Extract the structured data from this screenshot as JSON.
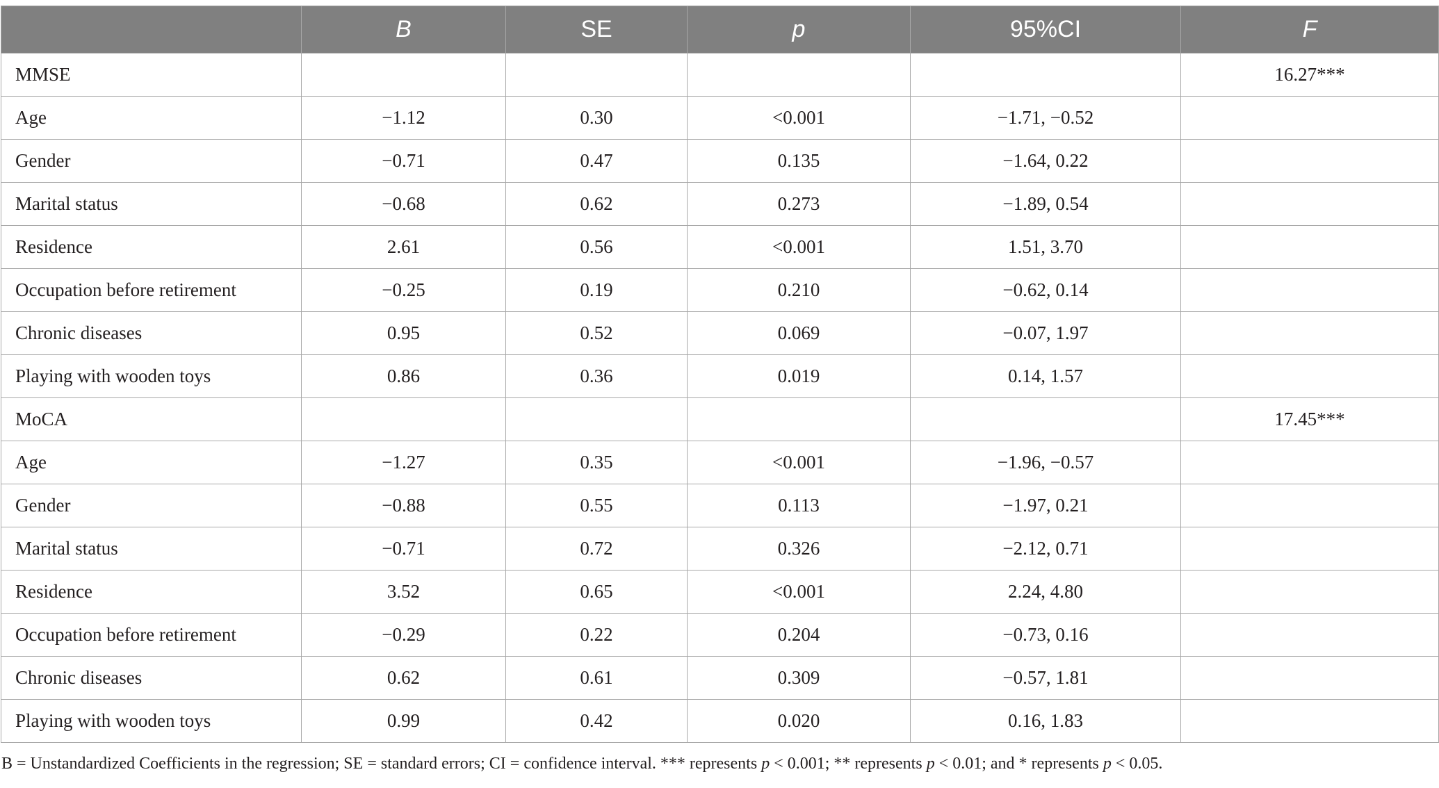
{
  "table": {
    "headers": [
      "",
      "B",
      "SE",
      "p",
      "95%CI",
      "F"
    ],
    "rows": [
      [
        "MMSE",
        "",
        "",
        "",
        "",
        "16.27***"
      ],
      [
        "Age",
        "−1.12",
        "0.30",
        "<0.001",
        "−1.71, −0.52",
        ""
      ],
      [
        "Gender",
        "−0.71",
        "0.47",
        "0.135",
        "−1.64, 0.22",
        ""
      ],
      [
        "Marital status",
        "−0.68",
        "0.62",
        "0.273",
        "−1.89, 0.54",
        ""
      ],
      [
        "Residence",
        "2.61",
        "0.56",
        "<0.001",
        "1.51, 3.70",
        ""
      ],
      [
        "Occupation before retirement",
        "−0.25",
        "0.19",
        "0.210",
        "−0.62, 0.14",
        ""
      ],
      [
        "Chronic diseases",
        "0.95",
        "0.52",
        "0.069",
        "−0.07, 1.97",
        ""
      ],
      [
        "Playing with wooden toys",
        "0.86",
        "0.36",
        "0.019",
        "0.14, 1.57",
        ""
      ],
      [
        "MoCA",
        "",
        "",
        "",
        "",
        "17.45***"
      ],
      [
        "Age",
        "−1.27",
        "0.35",
        "<0.001",
        "−1.96, −0.57",
        ""
      ],
      [
        "Gender",
        "−0.88",
        "0.55",
        "0.113",
        "−1.97, 0.21",
        ""
      ],
      [
        "Marital status",
        "−0.71",
        "0.72",
        "0.326",
        "−2.12, 0.71",
        ""
      ],
      [
        "Residence",
        "3.52",
        "0.65",
        "<0.001",
        "2.24, 4.80",
        ""
      ],
      [
        "Occupation before retirement",
        "−0.29",
        "0.22",
        "0.204",
        "−0.73, 0.16",
        ""
      ],
      [
        "Chronic diseases",
        "0.62",
        "0.61",
        "0.309",
        "−0.57, 1.81",
        ""
      ],
      [
        "Playing with wooden toys",
        "0.99",
        "0.42",
        "0.020",
        "0.16, 1.83",
        ""
      ]
    ]
  },
  "footnote": {
    "part1": "B = Unstandardized Coefficients in the regression; SE = standard errors; CI = confidence interval. *** represents ",
    "p1": "p",
    "part2": " < 0.001; ** represents ",
    "p2": "p",
    "part3": " < 0.01; and * represents ",
    "p3": "p",
    "part4": " < 0.05."
  },
  "colors": {
    "header_bg": "#808080",
    "header_text": "#ffffff",
    "grid": "#a8a8a8",
    "text": "#231f20"
  }
}
